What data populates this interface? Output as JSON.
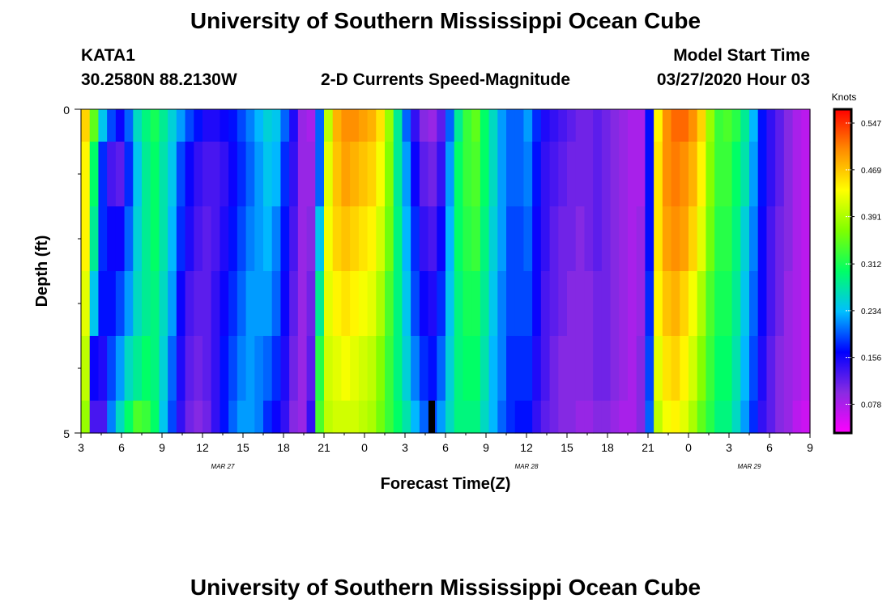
{
  "header": {
    "title": "University of Southern Mississippi Ocean Cube",
    "station": "KATA1",
    "coords": "30.2580N 88.2130W",
    "subtitle": "2-D Currents Speed-Magnitude",
    "model_label": "Model Start Time",
    "model_time": "03/27/2020 Hour 03",
    "footer_title": "University of Southern Mississippi Ocean Cube"
  },
  "chart_data": {
    "type": "heatmap",
    "xlabel": "Forecast Time(Z)",
    "ylabel": "Depth (ft)",
    "x_ticks": [
      "3",
      "6",
      "9",
      "12",
      "15",
      "18",
      "21",
      "0",
      "3",
      "6",
      "9",
      "12",
      "15",
      "18",
      "21",
      "0",
      "3",
      "6",
      "9"
    ],
    "date_labels": [
      {
        "text": "MAR 27",
        "hours_from_start": 10.5
      },
      {
        "text": "MAR 28",
        "hours_from_start": 33
      },
      {
        "text": "MAR 29",
        "hours_from_start": 49.5
      }
    ],
    "y_ticks": [
      "0",
      "5"
    ],
    "ylim": [
      0,
      5
    ],
    "x_hours_start": 3,
    "x_hours_span": 54,
    "colorbar": {
      "unit": "Knots",
      "ticks": [
        "0.547",
        "0.469",
        "0.391",
        "0.312",
        "0.234",
        "0.156",
        "0.078"
      ],
      "tick_values": [
        0.547,
        0.469,
        0.391,
        0.312,
        0.234,
        0.156,
        0.078
      ],
      "vmin": 0.03,
      "vmax": 0.57,
      "colors": [
        "#ff00ff",
        "#8a2be2",
        "#0000ff",
        "#00bfff",
        "#00ff66",
        "#7fff00",
        "#ffff00",
        "#ff8c00",
        "#ff0000"
      ]
    },
    "depth_layers": [
      0,
      0.5,
      1.5,
      2.5,
      3.5,
      4.5,
      5
    ],
    "series": [
      {
        "values": [
          0.46,
          0.35,
          0.24,
          0.19,
          0.16,
          0.2,
          0.26,
          0.29,
          0.31,
          0.28,
          0.25,
          0.22,
          0.19,
          0.17,
          0.15,
          0.15,
          0.16,
          0.17,
          0.19,
          0.21,
          0.23,
          0.25,
          0.24,
          0.2,
          0.15,
          0.09,
          0.08,
          0.2,
          0.4,
          0.48,
          0.5,
          0.5,
          0.49,
          0.48,
          0.45,
          0.38,
          0.28,
          0.2,
          0.14,
          0.1,
          0.09,
          0.12,
          0.2,
          0.28,
          0.33,
          0.35,
          0.3,
          0.26,
          0.22,
          0.2,
          0.2,
          0.22,
          0.18,
          0.15,
          0.14,
          0.13,
          0.12,
          0.11,
          0.11,
          0.12,
          0.11,
          0.1,
          0.09,
          0.08,
          0.08,
          0.17,
          0.44,
          0.5,
          0.52,
          0.52,
          0.5,
          0.46,
          0.38,
          0.33,
          0.34,
          0.32,
          0.28,
          0.23,
          0.17,
          0.14,
          0.12,
          0.1,
          0.08,
          0.07
        ]
      },
      {
        "values": [
          0.44,
          0.3,
          0.18,
          0.13,
          0.12,
          0.18,
          0.24,
          0.28,
          0.3,
          0.27,
          0.24,
          0.19,
          0.16,
          0.14,
          0.13,
          0.13,
          0.14,
          0.16,
          0.18,
          0.2,
          0.22,
          0.24,
          0.23,
          0.18,
          0.14,
          0.09,
          0.09,
          0.2,
          0.42,
          0.47,
          0.49,
          0.48,
          0.47,
          0.46,
          0.43,
          0.37,
          0.28,
          0.22,
          0.16,
          0.12,
          0.11,
          0.14,
          0.22,
          0.3,
          0.33,
          0.34,
          0.3,
          0.26,
          0.22,
          0.2,
          0.2,
          0.21,
          0.17,
          0.14,
          0.13,
          0.12,
          0.11,
          0.11,
          0.11,
          0.12,
          0.11,
          0.1,
          0.09,
          0.08,
          0.08,
          0.17,
          0.45,
          0.5,
          0.51,
          0.5,
          0.48,
          0.44,
          0.37,
          0.33,
          0.33,
          0.3,
          0.27,
          0.22,
          0.17,
          0.14,
          0.12,
          0.1,
          0.08,
          0.07
        ]
      },
      {
        "values": [
          0.44,
          0.28,
          0.18,
          0.16,
          0.16,
          0.2,
          0.25,
          0.28,
          0.3,
          0.27,
          0.23,
          0.18,
          0.15,
          0.13,
          0.12,
          0.13,
          0.15,
          0.17,
          0.19,
          0.21,
          0.22,
          0.23,
          0.21,
          0.17,
          0.13,
          0.09,
          0.1,
          0.24,
          0.43,
          0.46,
          0.47,
          0.46,
          0.45,
          0.44,
          0.41,
          0.36,
          0.29,
          0.23,
          0.18,
          0.14,
          0.13,
          0.16,
          0.23,
          0.3,
          0.32,
          0.33,
          0.29,
          0.25,
          0.22,
          0.19,
          0.19,
          0.2,
          0.16,
          0.14,
          0.12,
          0.11,
          0.11,
          0.1,
          0.11,
          0.12,
          0.11,
          0.1,
          0.09,
          0.08,
          0.09,
          0.17,
          0.45,
          0.49,
          0.5,
          0.49,
          0.46,
          0.42,
          0.36,
          0.32,
          0.32,
          0.29,
          0.25,
          0.21,
          0.16,
          0.13,
          0.11,
          0.1,
          0.08,
          0.07
        ]
      },
      {
        "values": [
          0.42,
          0.24,
          0.17,
          0.17,
          0.19,
          0.22,
          0.26,
          0.28,
          0.29,
          0.26,
          0.22,
          0.16,
          0.13,
          0.12,
          0.12,
          0.14,
          0.16,
          0.18,
          0.2,
          0.22,
          0.22,
          0.22,
          0.2,
          0.16,
          0.12,
          0.09,
          0.11,
          0.28,
          0.42,
          0.44,
          0.45,
          0.44,
          0.43,
          0.42,
          0.39,
          0.34,
          0.29,
          0.24,
          0.19,
          0.16,
          0.15,
          0.18,
          0.24,
          0.29,
          0.31,
          0.31,
          0.28,
          0.24,
          0.21,
          0.19,
          0.19,
          0.19,
          0.16,
          0.13,
          0.12,
          0.11,
          0.1,
          0.1,
          0.1,
          0.11,
          0.11,
          0.1,
          0.09,
          0.08,
          0.09,
          0.18,
          0.44,
          0.47,
          0.48,
          0.46,
          0.43,
          0.39,
          0.34,
          0.31,
          0.31,
          0.28,
          0.24,
          0.2,
          0.16,
          0.13,
          0.11,
          0.09,
          0.08,
          0.07
        ]
      },
      {
        "values": [
          0.4,
          0.16,
          0.15,
          0.19,
          0.22,
          0.26,
          0.28,
          0.3,
          0.29,
          0.25,
          0.2,
          0.15,
          0.12,
          0.11,
          0.12,
          0.14,
          0.17,
          0.19,
          0.21,
          0.22,
          0.21,
          0.2,
          0.18,
          0.15,
          0.11,
          0.09,
          0.12,
          0.32,
          0.41,
          0.42,
          0.43,
          0.42,
          0.41,
          0.4,
          0.37,
          0.33,
          0.29,
          0.25,
          0.21,
          0.18,
          0.17,
          0.2,
          0.25,
          0.29,
          0.3,
          0.3,
          0.27,
          0.23,
          0.21,
          0.18,
          0.18,
          0.18,
          0.15,
          0.13,
          0.11,
          0.1,
          0.1,
          0.1,
          0.1,
          0.11,
          0.11,
          0.1,
          0.09,
          0.08,
          0.1,
          0.19,
          0.42,
          0.45,
          0.46,
          0.44,
          0.41,
          0.37,
          0.33,
          0.3,
          0.3,
          0.27,
          0.23,
          0.19,
          0.15,
          0.12,
          0.1,
          0.09,
          0.08,
          0.07
        ]
      },
      {
        "values": [
          0.38,
          0.13,
          0.13,
          0.21,
          0.26,
          0.3,
          0.34,
          0.33,
          0.3,
          0.24,
          0.19,
          0.14,
          0.11,
          0.1,
          0.11,
          0.14,
          0.17,
          0.2,
          0.22,
          0.22,
          0.21,
          0.18,
          0.16,
          0.14,
          0.1,
          0.09,
          0.14,
          0.34,
          0.4,
          0.41,
          0.41,
          0.41,
          0.4,
          0.39,
          0.36,
          0.33,
          0.3,
          0.27,
          0.23,
          0.2,
          0.19,
          0.22,
          0.26,
          0.29,
          0.29,
          0.29,
          0.26,
          0.23,
          0.2,
          0.18,
          0.17,
          0.17,
          0.14,
          0.12,
          0.11,
          0.1,
          0.1,
          0.09,
          0.09,
          0.1,
          0.1,
          0.09,
          0.08,
          0.08,
          0.1,
          0.2,
          0.4,
          0.43,
          0.44,
          0.42,
          0.39,
          0.35,
          0.32,
          0.29,
          0.29,
          0.26,
          0.22,
          0.18,
          0.14,
          0.12,
          0.1,
          0.09,
          0.07,
          0.06
        ]
      }
    ]
  }
}
